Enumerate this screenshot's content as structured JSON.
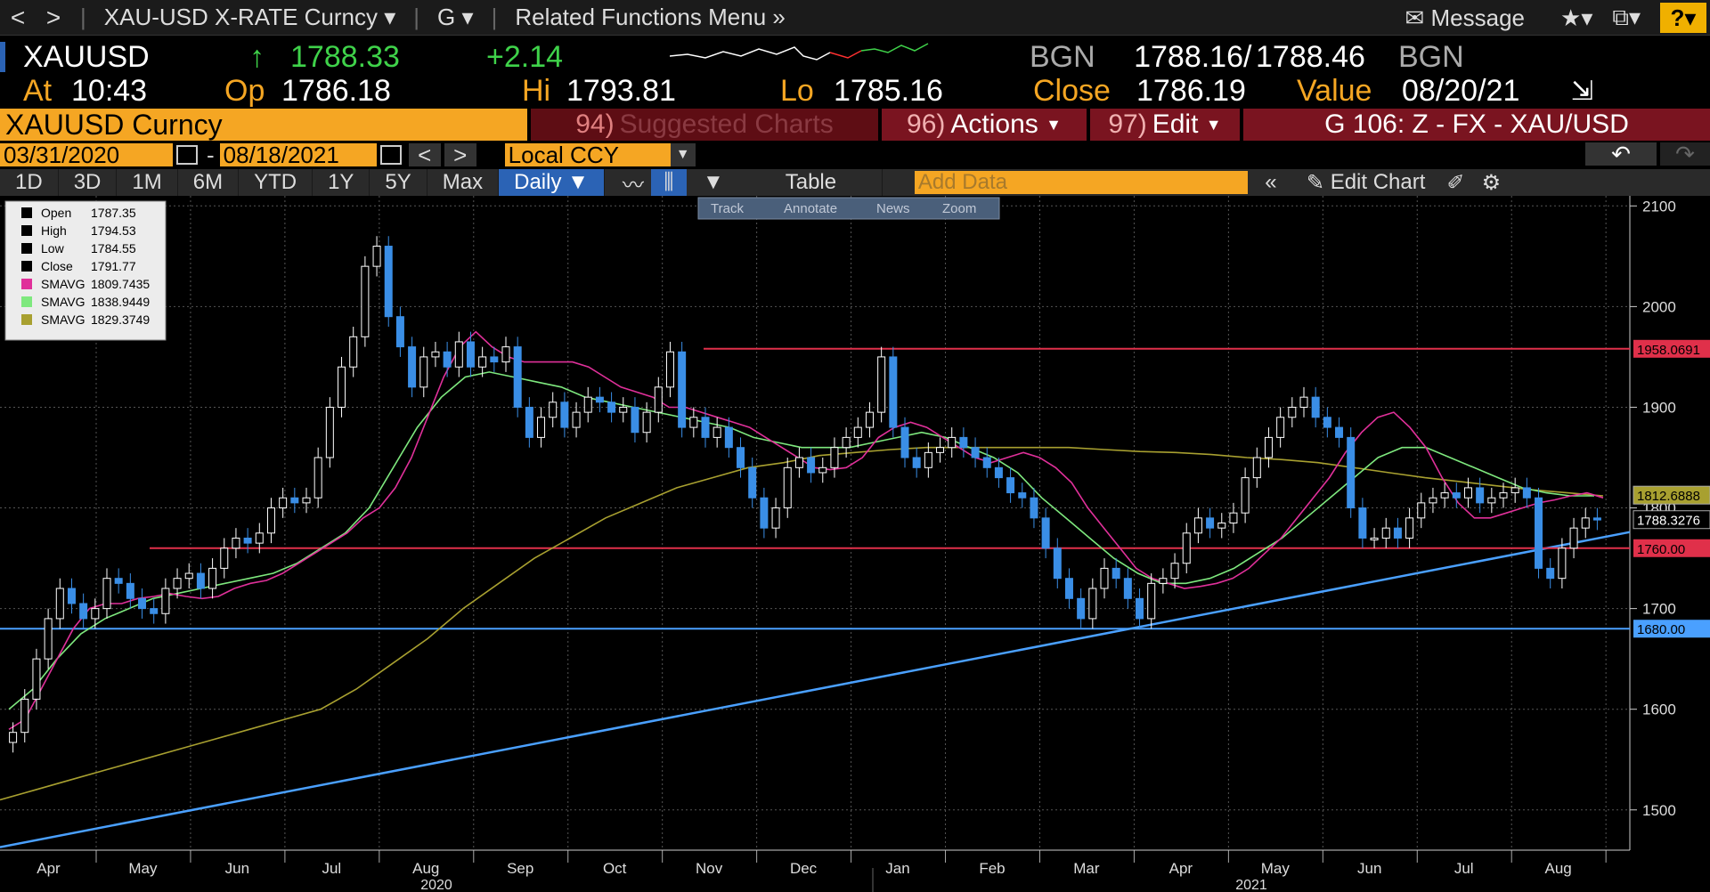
{
  "topbar": {
    "back": "<",
    "forward": ">",
    "security": "XAU-USD X-RATE Curncy",
    "function": "G",
    "related": "Related Functions Menu",
    "message": "Message",
    "help": "?"
  },
  "quote": {
    "ticker": "XAUUSD",
    "last": "1788.33",
    "change": "+2.14",
    "source_left": "BGN",
    "bid": "1788.16",
    "ask": "1788.46",
    "source_right": "BGN",
    "at_label": "At",
    "time": "10:43",
    "op_label": "Op",
    "open": "1786.18",
    "hi_label": "Hi",
    "high": "1793.81",
    "lo_label": "Lo",
    "low": "1785.16",
    "close_label": "Close",
    "close": "1786.19",
    "value_label": "Value",
    "value_date": "08/20/21"
  },
  "titlebar": {
    "ticker_title": "XAUUSD Curncy",
    "suggested_num": "94)",
    "suggested": "Suggested Charts",
    "actions_num": "96)",
    "actions": "Actions",
    "edit_num": "97)",
    "edit": "Edit",
    "chart_name": "G 106: Z - FX - XAU/USD"
  },
  "daterange": {
    "start": "03/31/2020",
    "dash": "-",
    "end": "08/18/2021",
    "currency": "Local CCY"
  },
  "tabs": [
    "1D",
    "3D",
    "1M",
    "6M",
    "YTD",
    "1Y",
    "5Y",
    "Max"
  ],
  "period": "Daily",
  "table_label": "Table",
  "add_data_placeholder": "Add Data",
  "edit_chart_label": "Edit Chart",
  "tools": [
    "Track",
    "Annotate",
    "News",
    "Zoom"
  ],
  "legend": [
    {
      "label": "Open",
      "value": "1787.35",
      "color": "#000000"
    },
    {
      "label": "High",
      "value": "1794.53",
      "color": "#000000"
    },
    {
      "label": "Low",
      "value": "1784.55",
      "color": "#000000"
    },
    {
      "label": "Close",
      "value": "1791.77",
      "color": "#000000"
    },
    {
      "label": "SMAVG",
      "value": "1809.7435",
      "color": "#e0309a"
    },
    {
      "label": "SMAVG",
      "value": "1838.9449",
      "color": "#7ee87e"
    },
    {
      "label": "SMAVG",
      "value": "1829.3749",
      "color": "#a8a030"
    }
  ],
  "chart_data": {
    "type": "candlestick",
    "y_ticks": [
      1500,
      1600,
      1700,
      1800,
      1900,
      2000,
      2100
    ],
    "ylim": [
      1460,
      2110
    ],
    "months": [
      "Apr",
      "May",
      "Jun",
      "Jul",
      "Aug",
      "Sep",
      "Oct",
      "Nov",
      "Dec",
      "Jan",
      "Feb",
      "Mar",
      "Apr",
      "May",
      "Jun",
      "Jul",
      "Aug"
    ],
    "years": [
      "2020",
      "2021"
    ],
    "close_series": [
      1577,
      1610,
      1650,
      1690,
      1720,
      1705,
      1690,
      1700,
      1730,
      1725,
      1710,
      1700,
      1695,
      1720,
      1730,
      1735,
      1720,
      1740,
      1760,
      1770,
      1765,
      1775,
      1800,
      1810,
      1805,
      1810,
      1850,
      1900,
      1940,
      1970,
      2040,
      2060,
      1990,
      1960,
      1920,
      1950,
      1955,
      1940,
      1965,
      1940,
      1950,
      1945,
      1960,
      1900,
      1870,
      1890,
      1905,
      1880,
      1895,
      1910,
      1905,
      1895,
      1900,
      1875,
      1895,
      1920,
      1955,
      1880,
      1890,
      1870,
      1880,
      1860,
      1840,
      1810,
      1780,
      1800,
      1840,
      1850,
      1835,
      1840,
      1860,
      1870,
      1880,
      1895,
      1950,
      1880,
      1850,
      1840,
      1855,
      1860,
      1870,
      1860,
      1850,
      1840,
      1830,
      1815,
      1810,
      1790,
      1760,
      1730,
      1710,
      1690,
      1720,
      1740,
      1730,
      1710,
      1690,
      1725,
      1730,
      1745,
      1775,
      1790,
      1780,
      1785,
      1795,
      1830,
      1850,
      1870,
      1890,
      1900,
      1910,
      1890,
      1880,
      1870,
      1800,
      1770,
      1770,
      1780,
      1770,
      1790,
      1805,
      1810,
      1815,
      1810,
      1820,
      1805,
      1810,
      1815,
      1820,
      1810,
      1740,
      1730,
      1760,
      1780,
      1790,
      1788
    ],
    "sma_magenta": [
      1580,
      1590,
      1620,
      1650,
      1680,
      1700,
      1705,
      1705,
      1710,
      1712,
      1715,
      1712,
      1710,
      1712,
      1720,
      1725,
      1728,
      1735,
      1745,
      1755,
      1765,
      1775,
      1790,
      1800,
      1820,
      1850,
      1890,
      1930,
      1960,
      1975,
      1960,
      1950,
      1945,
      1945,
      1945,
      1945,
      1940,
      1930,
      1920,
      1915,
      1910,
      1900,
      1900,
      1895,
      1890,
      1885,
      1880,
      1870,
      1860,
      1850,
      1840,
      1838,
      1840,
      1850,
      1870,
      1880,
      1885,
      1880,
      1870,
      1860,
      1850,
      1845,
      1850,
      1855,
      1850,
      1840,
      1825,
      1800,
      1780,
      1760,
      1740,
      1730,
      1725,
      1720,
      1722,
      1725,
      1730,
      1740,
      1755,
      1770,
      1790,
      1810,
      1830,
      1855,
      1875,
      1890,
      1895,
      1880,
      1860,
      1830,
      1805,
      1790,
      1790,
      1795,
      1800,
      1805,
      1808,
      1812,
      1815,
      1810
    ],
    "sma_green": [
      1600,
      1620,
      1650,
      1675,
      1690,
      1700,
      1710,
      1715,
      1720,
      1725,
      1730,
      1735,
      1745,
      1760,
      1775,
      1800,
      1840,
      1880,
      1910,
      1930,
      1935,
      1930,
      1925,
      1920,
      1910,
      1905,
      1900,
      1895,
      1890,
      1885,
      1880,
      1870,
      1865,
      1860,
      1860,
      1860,
      1865,
      1870,
      1875,
      1870,
      1860,
      1850,
      1835,
      1810,
      1790,
      1770,
      1750,
      1735,
      1725,
      1725,
      1730,
      1740,
      1755,
      1770,
      1790,
      1810,
      1830,
      1850,
      1860,
      1860,
      1850,
      1840,
      1830,
      1820,
      1815,
      1812,
      1812
    ],
    "sma_olive": [
      1510,
      1520,
      1530,
      1540,
      1550,
      1560,
      1570,
      1580,
      1590,
      1600,
      1620,
      1645,
      1670,
      1700,
      1725,
      1750,
      1770,
      1790,
      1805,
      1820,
      1830,
      1840,
      1845,
      1852,
      1855,
      1858,
      1860,
      1860,
      1860,
      1860,
      1860,
      1858,
      1856,
      1855,
      1853,
      1850,
      1848,
      1845,
      1840,
      1835,
      1830,
      1826,
      1822,
      1818,
      1815,
      1812
    ],
    "hlines": [
      {
        "value": 1958.0691,
        "label": "1958.0691",
        "color": "#e0304a"
      },
      {
        "value": 1760.0,
        "label": "1760.00",
        "color": "#e0304a"
      },
      {
        "value": 1680.0,
        "label": "1680.00",
        "color": "#4aa0ff"
      }
    ],
    "trendline": {
      "from": 1463,
      "to": 1776,
      "color": "#4aa0ff"
    },
    "price_tags": [
      {
        "value": 1812.6888,
        "label": "1812.6888",
        "color": "#a8a030"
      },
      {
        "value": 1788.3276,
        "label": "1788.3276",
        "color": "#000000"
      }
    ]
  }
}
